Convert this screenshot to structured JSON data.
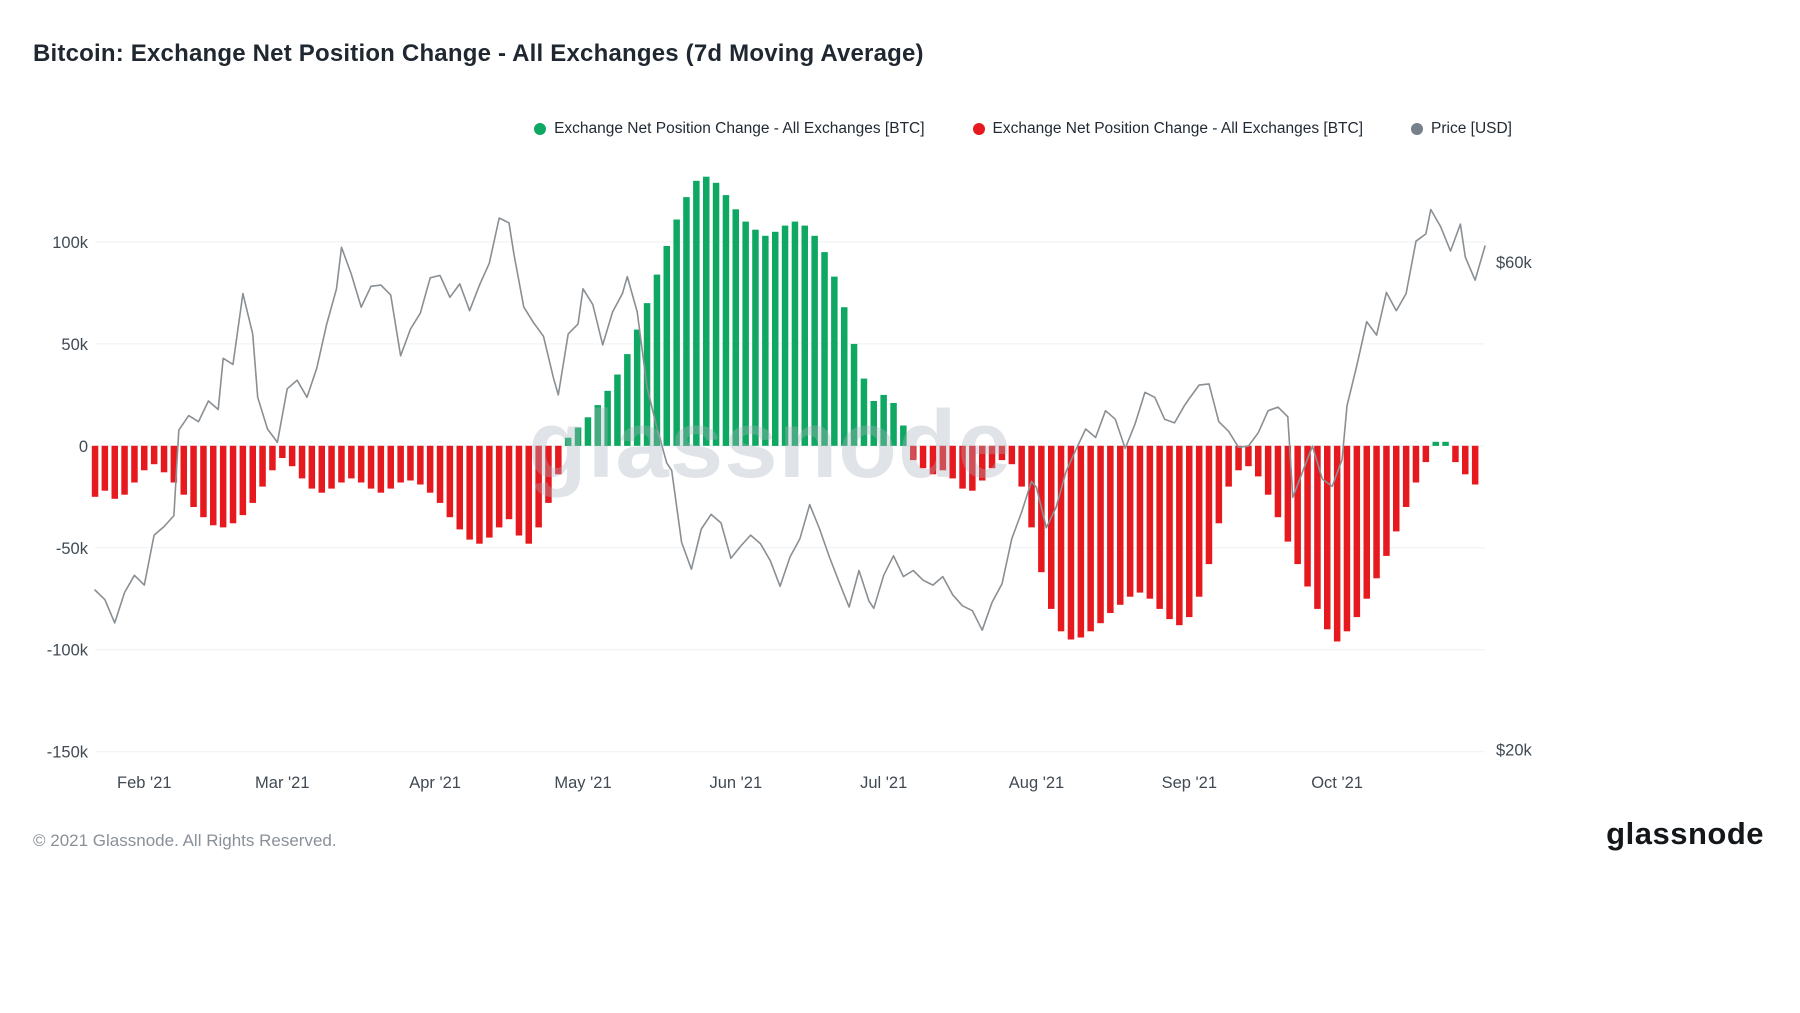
{
  "page": {
    "title": "Bitcoin: Exchange Net Position Change - All Exchanges (7d Moving Average)",
    "watermark": "glassnode",
    "footer_copyright": "© 2021 Glassnode. All Rights Reserved.",
    "brand_logo": "glassnode"
  },
  "legend": {
    "items": [
      {
        "label": "Exchange Net Position Change - All Exchanges [BTC]",
        "color": "#0fa862"
      },
      {
        "label": "Exchange Net Position Change - All Exchanges [BTC]",
        "color": "#e6191f"
      },
      {
        "label": "Price [USD]",
        "color": "#75808a"
      }
    ]
  },
  "chart_data": {
    "type": "bar+line",
    "title": "Bitcoin: Exchange Net Position Change - All Exchanges (7d Moving Average)",
    "legend_position": "top",
    "grid": true,
    "x_axis": {
      "min": 0,
      "max": 282,
      "note": "d = days since 2021-01-22",
      "ticks": [
        {
          "d": 10,
          "label": "Feb '21"
        },
        {
          "d": 38,
          "label": "Mar '21"
        },
        {
          "d": 69,
          "label": "Apr '21"
        },
        {
          "d": 99,
          "label": "May '21"
        },
        {
          "d": 130,
          "label": "Jun '21"
        },
        {
          "d": 160,
          "label": "Jul '21"
        },
        {
          "d": 191,
          "label": "Aug '21"
        },
        {
          "d": 222,
          "label": "Sep '21"
        },
        {
          "d": 252,
          "label": "Oct '21"
        }
      ]
    },
    "left_axis": {
      "unit": "BTC (thousands)",
      "min": -158,
      "max": 150,
      "ticks": [
        {
          "v": 100,
          "label": "100k"
        },
        {
          "v": 50,
          "label": "50k"
        },
        {
          "v": 0,
          "label": "0"
        },
        {
          "v": -50,
          "label": "-50k"
        },
        {
          "v": -100,
          "label": "-100k"
        },
        {
          "v": -150,
          "label": "-150k"
        }
      ]
    },
    "right_axis": {
      "unit": "USD (thousands)",
      "min": 18.5,
      "max": 70,
      "ticks": [
        {
          "v": 60,
          "label": "$60k"
        },
        {
          "v": 20,
          "label": "$20k"
        }
      ]
    },
    "bars": {
      "name": "Exchange Net Position Change - All Exchanges [BTC]",
      "unit": "k BTC",
      "day_start": 0,
      "day_step": 2,
      "bar_width": 6.5,
      "values": [
        -25,
        -22,
        -26,
        -24,
        -18,
        -12,
        -9,
        -13,
        -18,
        -24,
        -30,
        -35,
        -39,
        -40,
        -38,
        -34,
        -28,
        -20,
        -12,
        -6,
        -10,
        -16,
        -21,
        -23,
        -21,
        -18,
        -16,
        -18,
        -21,
        -23,
        -21,
        -18,
        -17,
        -19,
        -23,
        -28,
        -35,
        -41,
        -46,
        -48,
        -45,
        -40,
        -36,
        -44,
        -48,
        -40,
        -28,
        -14,
        4,
        9,
        14,
        20,
        27,
        35,
        45,
        57,
        70,
        84,
        98,
        111,
        122,
        130,
        132,
        129,
        123,
        116,
        110,
        106,
        103,
        105,
        108,
        110,
        108,
        103,
        95,
        83,
        68,
        50,
        33,
        22,
        25,
        21,
        10,
        -7,
        -11,
        -14,
        -12,
        -16,
        -21,
        -22,
        -17,
        -11,
        -7,
        -9,
        -20,
        -40,
        -62,
        -80,
        -91,
        -95,
        -94,
        -91,
        -87,
        -82,
        -78,
        -74,
        -72,
        -75,
        -80,
        -85,
        -88,
        -84,
        -74,
        -58,
        -38,
        -20,
        -12,
        -10,
        -15,
        -24,
        -35,
        -47,
        -58,
        -69,
        -80,
        -90,
        -96,
        -91,
        -84,
        -75,
        -65,
        -54,
        -42,
        -30,
        -18,
        -8,
        2,
        2,
        -8,
        -14,
        -19
      ]
    },
    "price_line": {
      "name": "Price [USD]",
      "unit": "k USD",
      "points": [
        [
          0,
          33.1
        ],
        [
          2,
          32.3
        ],
        [
          4,
          30.4
        ],
        [
          6,
          32.9
        ],
        [
          8,
          34.3
        ],
        [
          10,
          33.5
        ],
        [
          12,
          37.6
        ],
        [
          14,
          38.3
        ],
        [
          16,
          39.2
        ],
        [
          17,
          46.2
        ],
        [
          19,
          47.4
        ],
        [
          21,
          46.9
        ],
        [
          23,
          48.6
        ],
        [
          25,
          47.9
        ],
        [
          26,
          52.1
        ],
        [
          28,
          51.6
        ],
        [
          30,
          57.4
        ],
        [
          32,
          54.1
        ],
        [
          33,
          48.9
        ],
        [
          35,
          46.3
        ],
        [
          37,
          45.2
        ],
        [
          39,
          49.6
        ],
        [
          41,
          50.3
        ],
        [
          43,
          48.9
        ],
        [
          45,
          51.3
        ],
        [
          47,
          54.9
        ],
        [
          49,
          57.8
        ],
        [
          50,
          61.2
        ],
        [
          52,
          59.0
        ],
        [
          54,
          56.3
        ],
        [
          56,
          58.0
        ],
        [
          58,
          58.1
        ],
        [
          60,
          57.3
        ],
        [
          62,
          52.3
        ],
        [
          64,
          54.5
        ],
        [
          66,
          55.8
        ],
        [
          68,
          58.7
        ],
        [
          70,
          58.9
        ],
        [
          72,
          57.1
        ],
        [
          74,
          58.2
        ],
        [
          76,
          56.0
        ],
        [
          78,
          58.1
        ],
        [
          80,
          59.9
        ],
        [
          82,
          63.6
        ],
        [
          84,
          63.2
        ],
        [
          85,
          60.6
        ],
        [
          87,
          56.3
        ],
        [
          89,
          55.0
        ],
        [
          91,
          53.9
        ],
        [
          93,
          50.5
        ],
        [
          94,
          49.1
        ],
        [
          96,
          54.1
        ],
        [
          98,
          54.9
        ],
        [
          99,
          57.8
        ],
        [
          101,
          56.5
        ],
        [
          103,
          53.2
        ],
        [
          105,
          55.9
        ],
        [
          107,
          57.4
        ],
        [
          108,
          58.8
        ],
        [
          110,
          55.9
        ],
        [
          112,
          49.7
        ],
        [
          114,
          46.4
        ],
        [
          116,
          43.5
        ],
        [
          117,
          42.9
        ],
        [
          119,
          37.0
        ],
        [
          121,
          34.8
        ],
        [
          123,
          38.1
        ],
        [
          125,
          39.3
        ],
        [
          127,
          38.6
        ],
        [
          129,
          35.7
        ],
        [
          131,
          36.7
        ],
        [
          133,
          37.6
        ],
        [
          135,
          36.9
        ],
        [
          137,
          35.5
        ],
        [
          139,
          33.4
        ],
        [
          141,
          35.8
        ],
        [
          143,
          37.3
        ],
        [
          145,
          40.1
        ],
        [
          147,
          38.1
        ],
        [
          149,
          35.8
        ],
        [
          151,
          33.7
        ],
        [
          153,
          31.7
        ],
        [
          155,
          34.7
        ],
        [
          157,
          32.2
        ],
        [
          158,
          31.6
        ],
        [
          160,
          34.3
        ],
        [
          162,
          35.9
        ],
        [
          164,
          34.2
        ],
        [
          166,
          34.7
        ],
        [
          168,
          33.9
        ],
        [
          170,
          33.5
        ],
        [
          172,
          34.2
        ],
        [
          174,
          32.7
        ],
        [
          176,
          31.8
        ],
        [
          178,
          31.4
        ],
        [
          180,
          29.8
        ],
        [
          182,
          32.1
        ],
        [
          184,
          33.6
        ],
        [
          186,
          37.3
        ],
        [
          188,
          39.5
        ],
        [
          190,
          42.0
        ],
        [
          191,
          41.5
        ],
        [
          193,
          38.2
        ],
        [
          195,
          39.9
        ],
        [
          197,
          42.8
        ],
        [
          199,
          44.6
        ],
        [
          201,
          46.3
        ],
        [
          203,
          45.6
        ],
        [
          205,
          47.8
        ],
        [
          207,
          47.1
        ],
        [
          209,
          44.7
        ],
        [
          211,
          46.7
        ],
        [
          213,
          49.3
        ],
        [
          215,
          48.9
        ],
        [
          217,
          47.1
        ],
        [
          219,
          46.8
        ],
        [
          221,
          48.2
        ],
        [
          222,
          48.8
        ],
        [
          224,
          49.9
        ],
        [
          226,
          50.0
        ],
        [
          228,
          46.9
        ],
        [
          230,
          46.1
        ],
        [
          232,
          44.8
        ],
        [
          234,
          44.9
        ],
        [
          236,
          46.0
        ],
        [
          238,
          47.8
        ],
        [
          240,
          48.1
        ],
        [
          242,
          47.3
        ],
        [
          243,
          40.7
        ],
        [
          245,
          42.8
        ],
        [
          247,
          44.9
        ],
        [
          249,
          42.2
        ],
        [
          251,
          41.6
        ],
        [
          253,
          43.8
        ],
        [
          254,
          48.2
        ],
        [
          256,
          51.5
        ],
        [
          258,
          55.1
        ],
        [
          260,
          54.0
        ],
        [
          262,
          57.5
        ],
        [
          264,
          56.0
        ],
        [
          266,
          57.4
        ],
        [
          268,
          61.7
        ],
        [
          270,
          62.3
        ],
        [
          271,
          64.3
        ],
        [
          273,
          62.9
        ],
        [
          275,
          60.9
        ],
        [
          277,
          63.1
        ],
        [
          278,
          60.4
        ],
        [
          280,
          58.5
        ],
        [
          282,
          61.3
        ]
      ]
    },
    "colors": {
      "positive": "#0fa862",
      "negative": "#e6191f",
      "price": "#8a8f94",
      "grid": "#eef0f3"
    }
  }
}
